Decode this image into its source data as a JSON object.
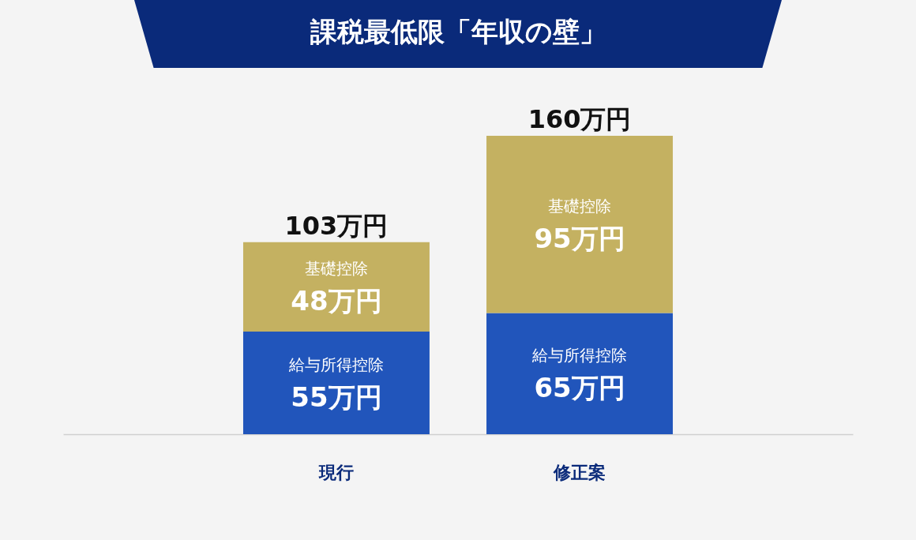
{
  "chart_data": {
    "type": "bar",
    "title": "課税最低限「年収の壁」",
    "categories": [
      "現行",
      "修正案"
    ],
    "stacked": true,
    "series": [
      {
        "name": "給与所得控除",
        "color": "#2155bb",
        "values": [
          55,
          65
        ],
        "value_labels": [
          "55万円",
          "65万円"
        ]
      },
      {
        "name": "基礎控除",
        "color": "#c4b161",
        "values": [
          48,
          95
        ],
        "value_labels": [
          "48万円",
          "95万円"
        ]
      }
    ],
    "totals": [
      "103万円",
      "160万円"
    ],
    "legend": false,
    "grid": false
  }
}
